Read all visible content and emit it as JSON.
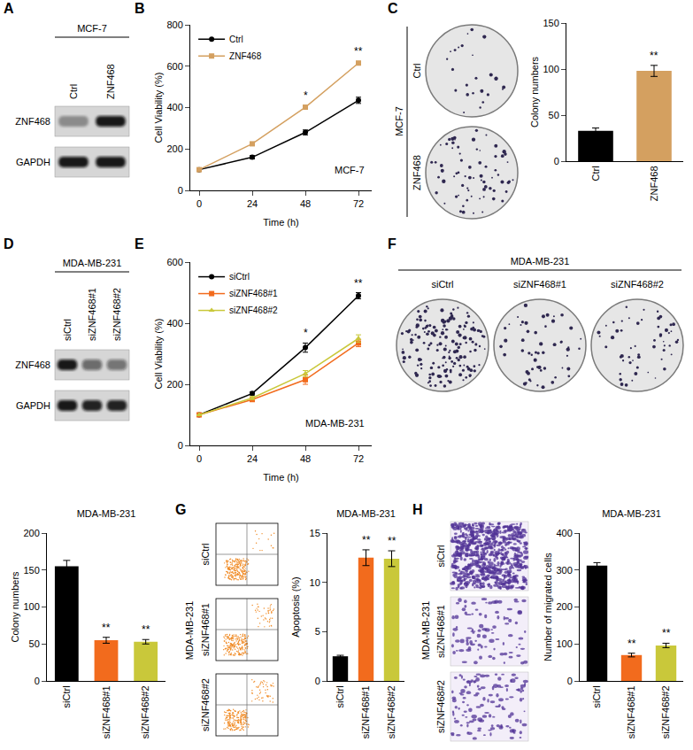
{
  "chart_data": [
    {
      "panel": "B",
      "type": "line",
      "x_label": "Time (h)",
      "y_label": "Cell Viability (%)",
      "x": [
        0,
        24,
        48,
        72
      ],
      "xlim": [
        -4,
        78
      ],
      "xticks": [
        0,
        24,
        48,
        72
      ],
      "ylim": [
        0,
        800
      ],
      "yticks": [
        0,
        200,
        400,
        600,
        800
      ],
      "grid": false,
      "legend": "upper left",
      "annotations": [
        {
          "text": "MCF-7"
        }
      ],
      "significance": [
        {
          "x": 48,
          "text": "*"
        },
        {
          "x": 72,
          "text": "**"
        }
      ],
      "series": [
        {
          "name": "Ctrl",
          "color": "#000000",
          "marker": "circle",
          "values": [
            100,
            160,
            280,
            435
          ],
          "errors": [
            0,
            8,
            12,
            15
          ]
        },
        {
          "name": "ZNF468",
          "color": "#d4a060",
          "marker": "square",
          "values": [
            100,
            225,
            402,
            615
          ],
          "errors": [
            0,
            8,
            8,
            8
          ]
        }
      ]
    },
    {
      "type": "bar",
      "y_label": "Colony numbers",
      "categories": [
        "Ctrl",
        "ZNF468"
      ],
      "values": [
        33,
        98
      ],
      "errors": [
        3,
        6
      ],
      "colors": [
        "#000000",
        "#d4a060"
      ],
      "ylim": [
        0,
        150
      ],
      "yticks": [
        0,
        50,
        100,
        150
      ],
      "grid": false,
      "significance": [
        null,
        "**"
      ]
    },
    {
      "panel": "E",
      "type": "line",
      "x_label": "Time (h)",
      "y_label": "Cell Viability (%)",
      "x": [
        0,
        24,
        48,
        72
      ],
      "xlim": [
        -4,
        78
      ],
      "xticks": [
        0,
        24,
        48,
        72
      ],
      "ylim": [
        0,
        600
      ],
      "yticks": [
        0,
        200,
        400,
        600
      ],
      "grid": false,
      "legend": "upper left",
      "annotations": [
        {
          "text": "MDA-MB-231"
        }
      ],
      "significance": [
        {
          "x": 48,
          "text": "*"
        },
        {
          "x": 72,
          "text": "**"
        }
      ],
      "series": [
        {
          "name": "siCtrl",
          "color": "#000000",
          "marker": "circle",
          "values": [
            100,
            170,
            320,
            490
          ],
          "errors": [
            0,
            5,
            15,
            10
          ]
        },
        {
          "name": "siZNF468#1",
          "color": "#f26b1d",
          "marker": "square",
          "values": [
            100,
            150,
            215,
            335
          ],
          "errors": [
            0,
            5,
            15,
            12
          ]
        },
        {
          "name": "siZNF468#2",
          "color": "#c9c83a",
          "marker": "triangle",
          "values": [
            100,
            155,
            235,
            350
          ],
          "errors": [
            0,
            5,
            10,
            12
          ]
        }
      ]
    },
    {
      "type": "bar",
      "title": "MDA-MB-231",
      "y_label": "Colony numbers",
      "categories": [
        "siCtrl",
        "siZNF468#1",
        "siZNF468#2"
      ],
      "values": [
        155,
        55,
        53
      ],
      "errors": [
        8,
        4,
        3
      ],
      "colors": [
        "#000000",
        "#f26b1d",
        "#c9c83a"
      ],
      "ylim": [
        0,
        200
      ],
      "yticks": [
        0,
        50,
        100,
        150,
        200
      ],
      "grid": false,
      "significance": [
        null,
        "**",
        "**"
      ]
    },
    {
      "type": "bar",
      "title": "MDA-MB-231",
      "y_label": "Apoptosis (%)",
      "categories": [
        "siCtrl",
        "siZNF468#1",
        "siZNF468#2"
      ],
      "values": [
        2.5,
        12.5,
        12.4
      ],
      "errors": [
        0.1,
        0.8,
        0.8
      ],
      "colors": [
        "#000000",
        "#f26b1d",
        "#c9c83a"
      ],
      "ylim": [
        0,
        15
      ],
      "yticks": [
        0,
        5,
        10,
        15
      ],
      "grid": false,
      "significance": [
        null,
        "**",
        "**"
      ]
    },
    {
      "type": "bar",
      "title": "MDA-MB-231",
      "y_label": "Number of migrated cells",
      "categories": [
        "siCtrl",
        "siZNF468#1",
        "siZNF468#2"
      ],
      "values": [
        312,
        70,
        96
      ],
      "errors": [
        8,
        5,
        6
      ],
      "colors": [
        "#000000",
        "#f26b1d",
        "#c9c83a"
      ],
      "ylim": [
        0,
        400
      ],
      "yticks": [
        0,
        100,
        200,
        300,
        400
      ],
      "grid": false,
      "significance": [
        null,
        "**",
        "**"
      ]
    }
  ],
  "panels": [
    {
      "letter": "A",
      "kind": "western_blot",
      "cell_line": "MCF-7",
      "lanes": [
        "Ctrl",
        "ZNF468"
      ],
      "rows": [
        "ZNF468",
        "GAPDH"
      ]
    },
    {
      "letter": "C",
      "kind": "colony_images",
      "cell_line": "MCF-7",
      "images": [
        "Ctrl",
        "ZNF468"
      ]
    },
    {
      "letter": "D",
      "kind": "western_blot",
      "cell_line": "MDA-MB-231",
      "lanes": [
        "siCtrl",
        "siZNF468#1",
        "siZNF468#2"
      ],
      "rows": [
        "ZNF468",
        "GAPDH"
      ]
    },
    {
      "letter": "F",
      "kind": "colony_images",
      "cell_line": "MDA-MB-231",
      "images": [
        "siCtrl",
        "siZNF468#1",
        "siZNF468#2"
      ]
    },
    {
      "letter": "G",
      "kind": "flow_cytometry",
      "cell_line": "MDA-MB-231",
      "images": [
        "siCtrl",
        "siZNF468#1",
        "siZNF468#2"
      ]
    },
    {
      "letter": "H",
      "kind": "transwell_images",
      "cell_line": "MDA-MB-231",
      "images": [
        "siCtrl",
        "siZNF468#1",
        "siZNF468#2"
      ]
    }
  ]
}
